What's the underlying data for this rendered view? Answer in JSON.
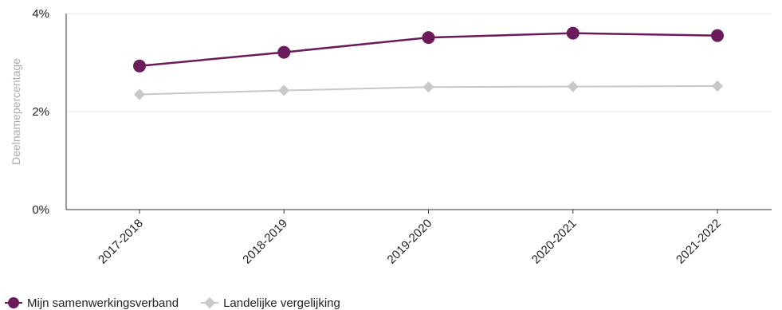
{
  "chart_data": {
    "type": "line",
    "title": "",
    "xlabel": "",
    "ylabel": "Deelnamepercentage",
    "categories": [
      "2017-2018",
      "2018-2019",
      "2019-2020",
      "2020-2021",
      "2021-2022"
    ],
    "ylim": [
      0,
      4
    ],
    "yticks": [
      {
        "value": 0,
        "label": "0%"
      },
      {
        "value": 2,
        "label": "2%"
      },
      {
        "value": 4,
        "label": "4%"
      }
    ],
    "grid": true,
    "legend_position": "bottom-left",
    "series": [
      {
        "name": "Mijn samenwerkingsverband",
        "values": [
          2.93,
          3.21,
          3.51,
          3.6,
          3.55
        ],
        "color": "#6b1a5c",
        "marker": "circle"
      },
      {
        "name": "Landelijke vergelijking",
        "values": [
          2.35,
          2.43,
          2.5,
          2.51,
          2.52
        ],
        "color": "#c8c8c8",
        "marker": "diamond"
      }
    ]
  }
}
